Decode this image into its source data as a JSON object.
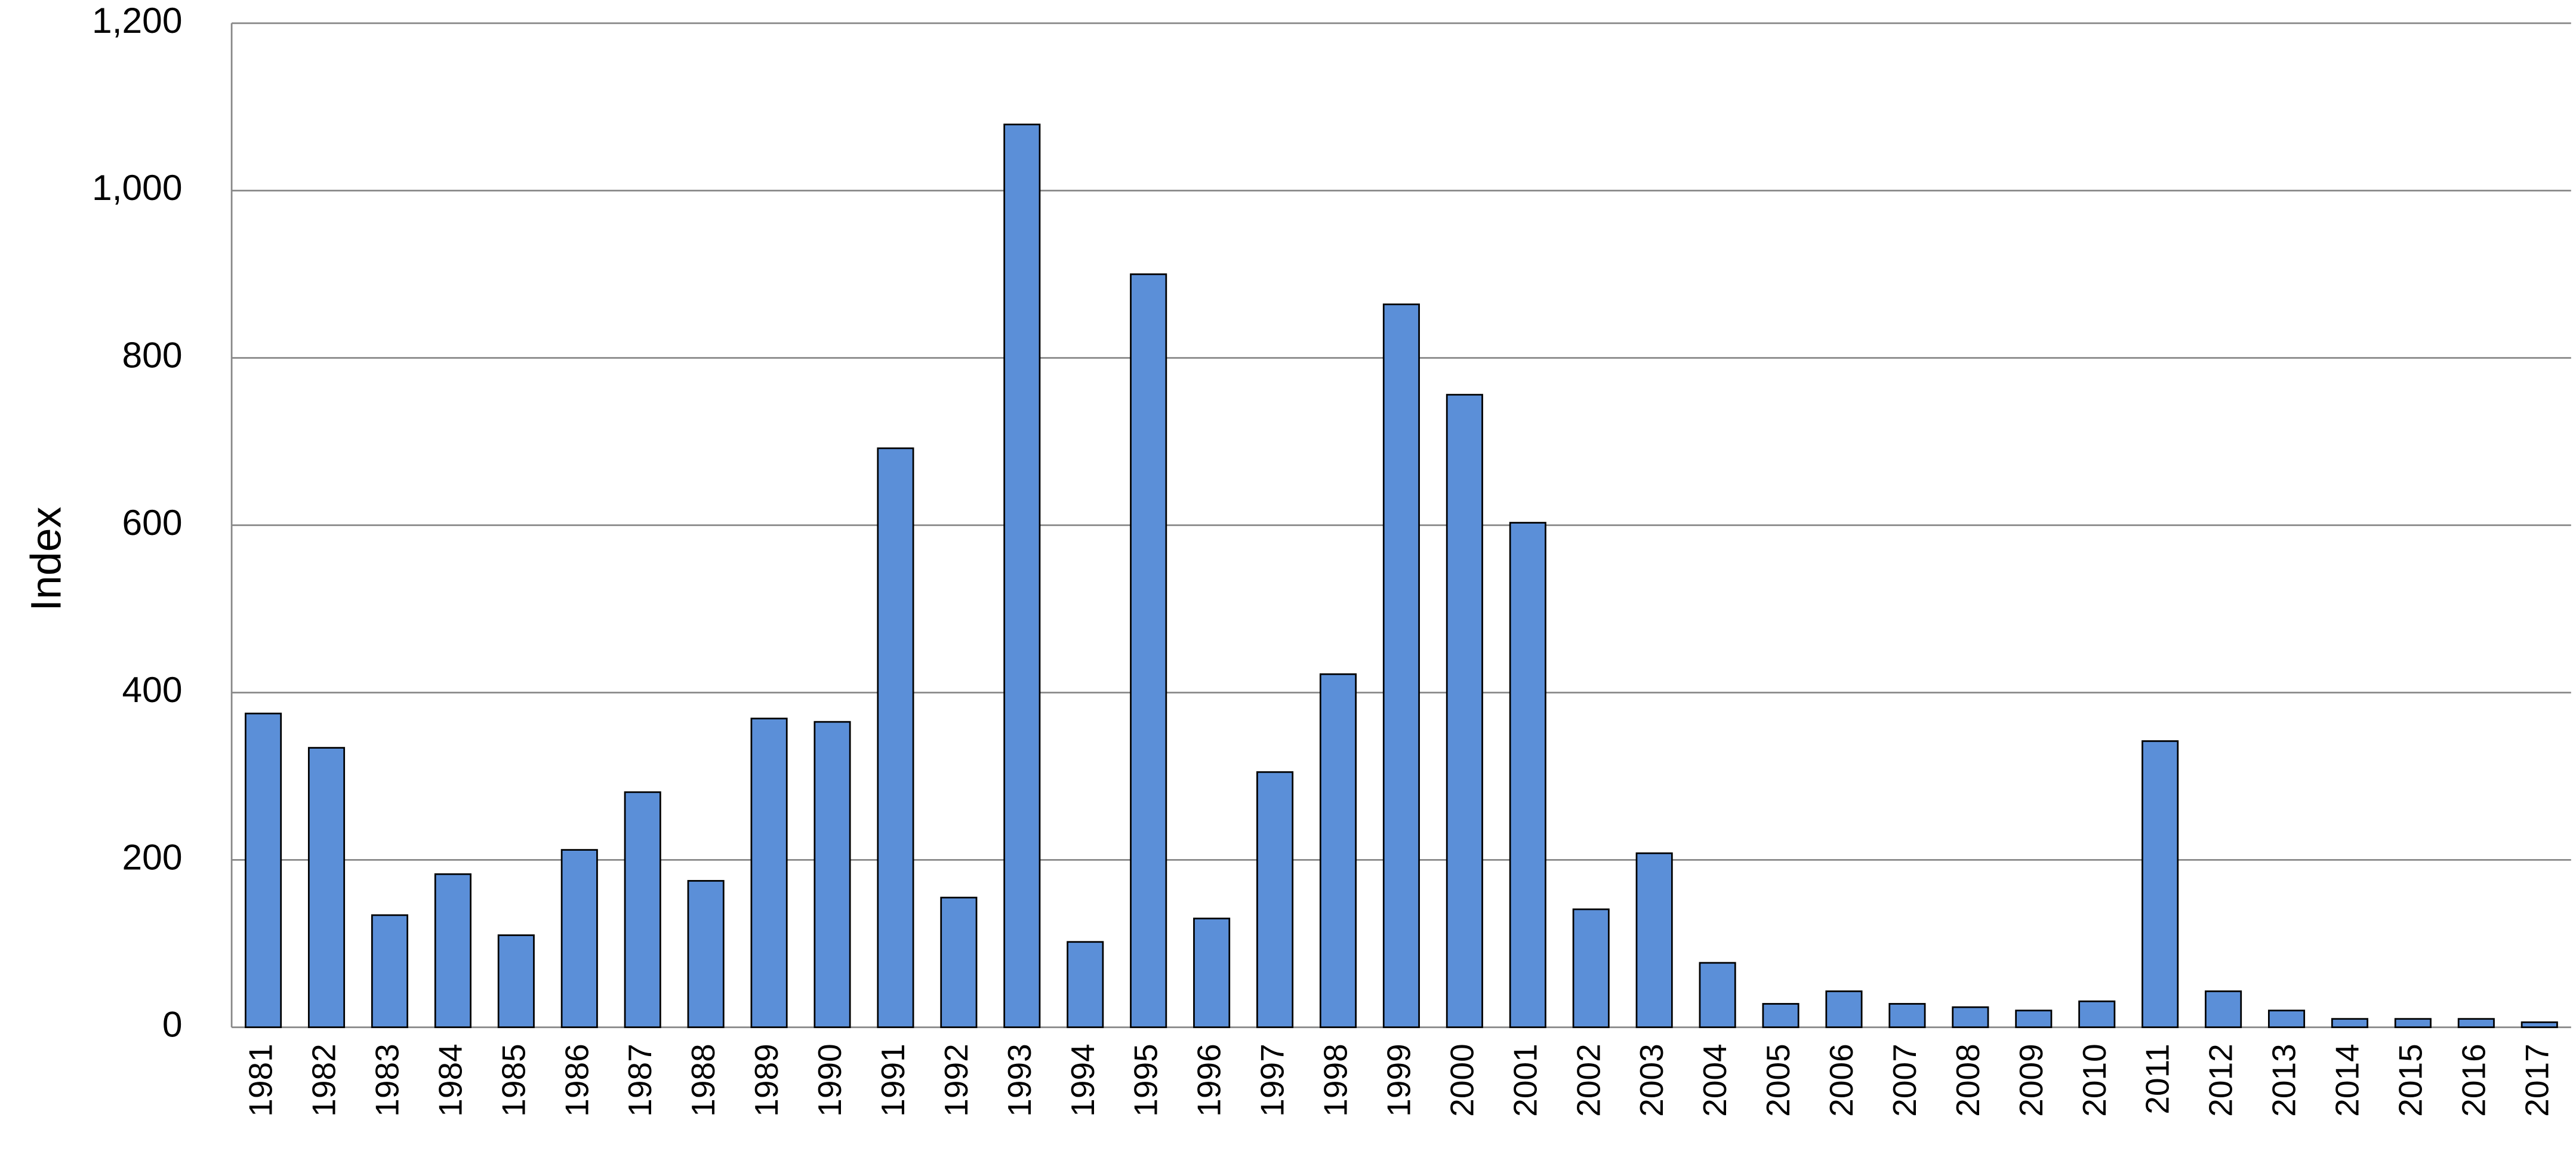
{
  "chart_data": {
    "type": "bar",
    "y_label": "Index",
    "categories": [
      "1981",
      "1982",
      "1983",
      "1984",
      "1985",
      "1986",
      "1987",
      "1988",
      "1989",
      "1990",
      "1991",
      "1992",
      "1993",
      "1994",
      "1995",
      "1996",
      "1997",
      "1998",
      "1999",
      "2000",
      "2001",
      "2002",
      "2003",
      "2004",
      "2005",
      "2006",
      "2007",
      "2008",
      "2009",
      "2010",
      "2011",
      "2012",
      "2013",
      "2014",
      "2015",
      "2016",
      "2017"
    ],
    "values": [
      375,
      334,
      134,
      183,
      110,
      212,
      281,
      175,
      369,
      365,
      692,
      155,
      1079,
      102,
      900,
      130,
      305,
      422,
      864,
      756,
      603,
      141,
      208,
      77,
      28,
      43,
      28,
      24,
      20,
      31,
      342,
      43,
      20,
      10,
      10,
      10,
      6
    ],
    "color": "#5b8fd8",
    "ylim": [
      0,
      1200
    ],
    "yticks": [
      0,
      200,
      400,
      600,
      800,
      {
        "value": 1000,
        "label": "1,000"
      },
      {
        "value": 1200,
        "label": "1,200"
      }
    ],
    "grid": true
  }
}
